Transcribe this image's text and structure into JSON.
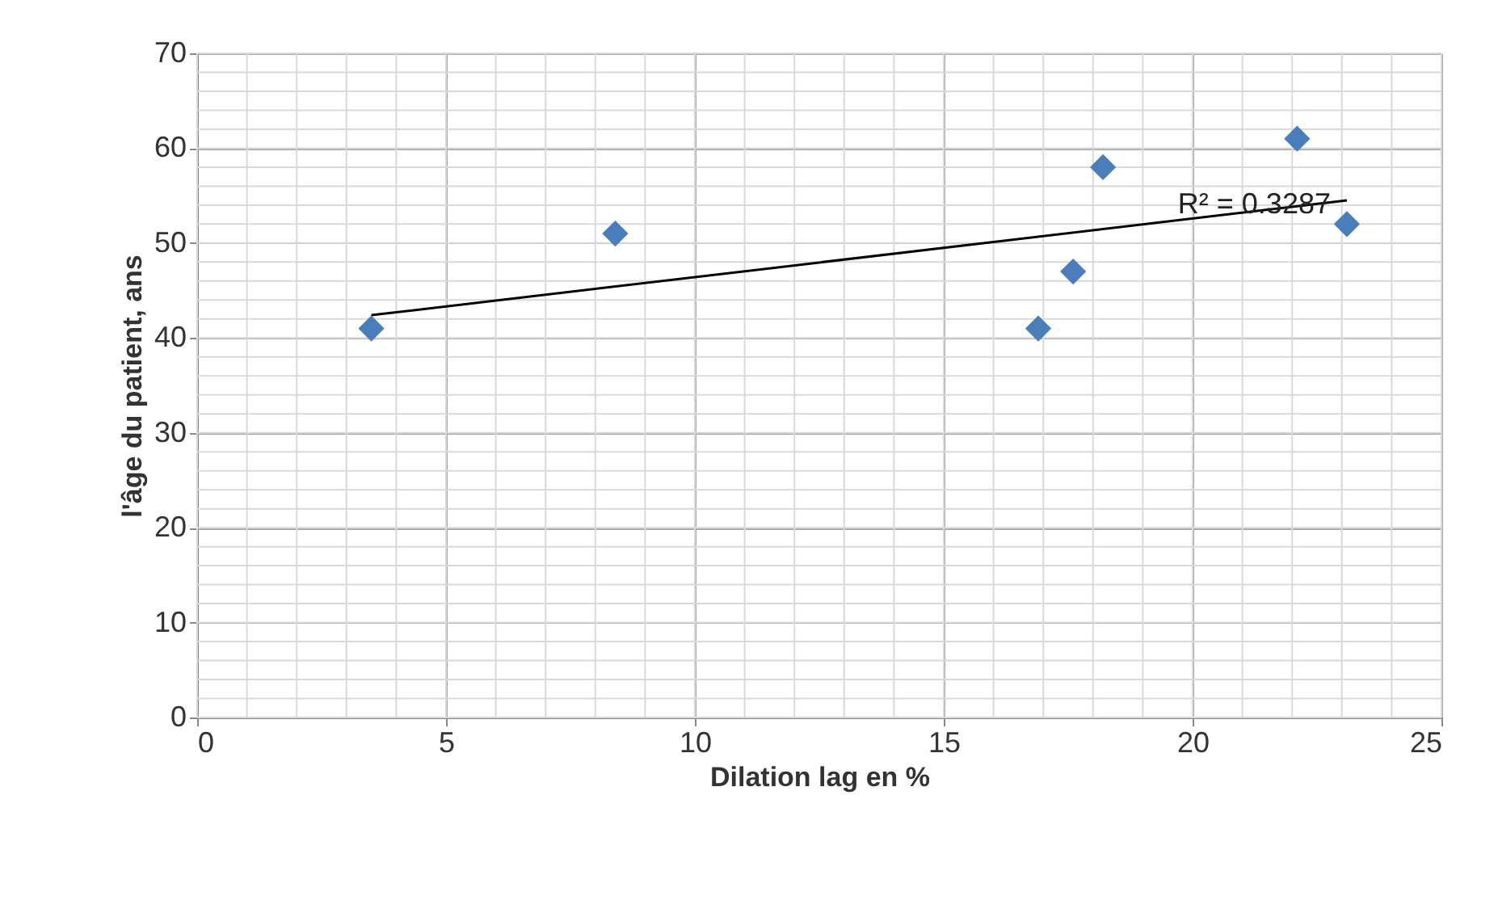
{
  "chart_data": {
    "type": "scatter",
    "xlabel": "Dilation lag en %",
    "ylabel": "l'âge du patient, ans",
    "xlim": [
      0,
      25
    ],
    "xticks": [
      0,
      5,
      10,
      15,
      20,
      25
    ],
    "ylim": [
      0,
      70
    ],
    "yticks": [
      0,
      10,
      20,
      30,
      40,
      50,
      60,
      70
    ],
    "grid": true,
    "series": [
      {
        "marker": "diamond",
        "color": "#4a7ebb",
        "x": [
          3.5,
          8.4,
          16.9,
          17.6,
          18.2,
          22.1,
          23.1
        ],
        "values": [
          41,
          51,
          41,
          47,
          58,
          61,
          52
        ]
      },
      {
        "type": "line",
        "marker": "none",
        "color": "#000000",
        "x": [
          3.5,
          23.1
        ],
        "values": [
          42.4,
          54.5
        ]
      }
    ],
    "annotations": [
      "R² = 0.3287"
    ]
  }
}
